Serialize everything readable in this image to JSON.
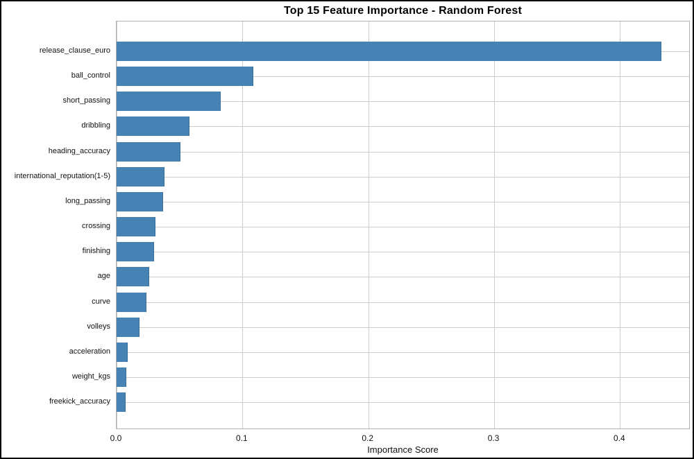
{
  "chart_data": {
    "type": "bar",
    "orientation": "horizontal",
    "title": "Top 15 Feature Importance - Random Forest",
    "xlabel": "Importance Score",
    "ylabel": "",
    "categories": [
      "release_clause_euro",
      "ball_control",
      "short_passing",
      "dribbling",
      "heading_accuracy",
      "international_reputation(1-5)",
      "long_passing",
      "crossing",
      "finishing",
      "age",
      "curve",
      "volleys",
      "acceleration",
      "weight_kgs",
      "freekick_accuracy"
    ],
    "values": [
      0.434,
      0.109,
      0.083,
      0.058,
      0.051,
      0.038,
      0.037,
      0.031,
      0.03,
      0.026,
      0.024,
      0.018,
      0.009,
      0.008,
      0.007
    ],
    "xlim": [
      0,
      0.456
    ],
    "xticks": [
      0.0,
      0.1,
      0.2,
      0.3,
      0.4
    ],
    "grid": true,
    "legend": "none",
    "bar_color": "#4682b4",
    "gridline_color": "#cccccc",
    "spine_color": "#b0b0b0",
    "background_color": "#ffffff",
    "border_color": "#000000"
  }
}
